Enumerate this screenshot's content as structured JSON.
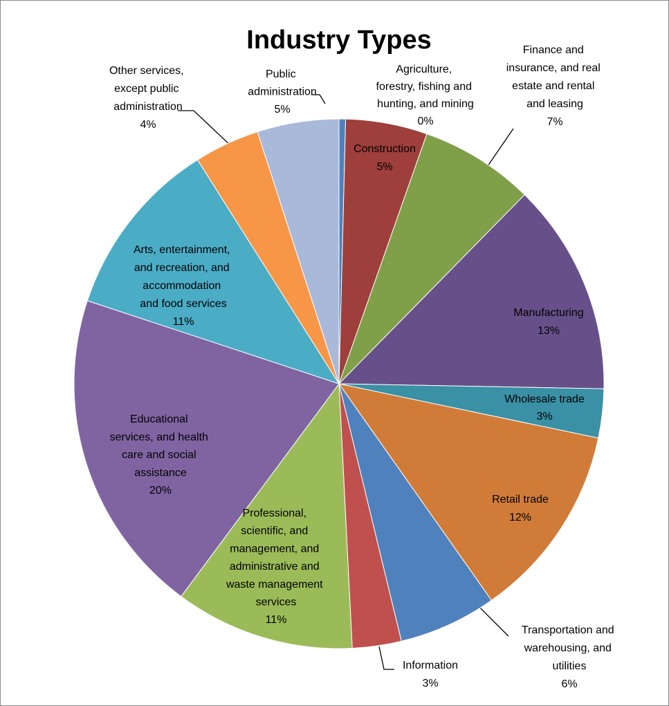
{
  "chart_data": {
    "type": "pie",
    "title": "Industry Types",
    "categories": [
      "Agriculture, forestry, fishing and hunting, and mining",
      "Construction",
      "Finance and insurance, and real estate and rental and leasing",
      "Manufacturing",
      "Wholesale trade",
      "Retail trade",
      "Transportation and warehousing, and utilities",
      "Information",
      "Professional, scientific, and management, and administrative and waste management services",
      "Educational services, and health care and social assistance",
      "Arts, entertainment, and recreation, and accommodation and food services",
      "Other services, except public administration",
      "Public administration"
    ],
    "values": [
      0.4,
      5,
      7,
      13,
      3,
      12,
      6,
      3,
      11,
      20,
      11,
      4,
      5
    ],
    "value_labels": [
      "0%",
      "5%",
      "7%",
      "13%",
      "3%",
      "12%",
      "6%",
      "3%",
      "11%",
      "20%",
      "11%",
      "4%",
      "5%"
    ],
    "colors": [
      "#4f81bd",
      "#9e3f3c",
      "#7f9f48",
      "#67508a",
      "#3a90a5",
      "#d07c38",
      "#4f81bd",
      "#c0504d",
      "#9bbb59",
      "#8064a2",
      "#4bacc6",
      "#f79646",
      "#a9b9d9"
    ]
  }
}
